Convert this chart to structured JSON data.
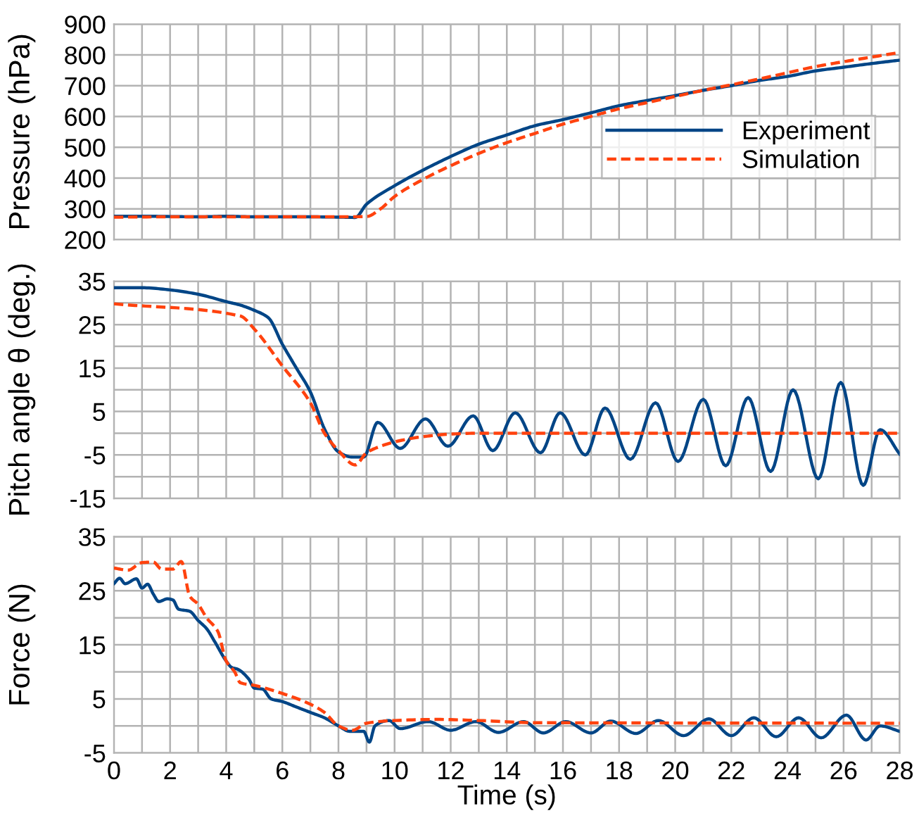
{
  "chart_data": [
    {
      "type": "line",
      "ylabel": "Pressure (hPa)",
      "xlim": [
        0,
        28
      ],
      "xticks": [
        0,
        {
          "value": 1,
          "label": null
        },
        2,
        {
          "value": 3,
          "label": null
        },
        4,
        {
          "value": 5,
          "label": null
        },
        6,
        {
          "value": 7,
          "label": null
        },
        8,
        {
          "value": 9,
          "label": null
        },
        10,
        {
          "value": 11,
          "label": null
        },
        12,
        {
          "value": 13,
          "label": null
        },
        14,
        {
          "value": 15,
          "label": null
        },
        16,
        {
          "value": 17,
          "label": null
        },
        18,
        {
          "value": 19,
          "label": null
        },
        20,
        {
          "value": 21,
          "label": null
        },
        22,
        {
          "value": 23,
          "label": null
        },
        24,
        {
          "value": 25,
          "label": null
        },
        26,
        {
          "value": 27,
          "label": null
        },
        28
      ],
      "ylim": [
        200,
        900
      ],
      "yticks": [
        200,
        300,
        400,
        500,
        600,
        700,
        800,
        900
      ],
      "tick_labels": "y",
      "grid": true,
      "legend": "right",
      "marker": "none",
      "series": [
        {
          "name": "Experiment",
          "color": "#004586",
          "line_style": "solid",
          "x": [
            0,
            1,
            2,
            3,
            4,
            5,
            6,
            7,
            8,
            8.6,
            9,
            10,
            11,
            12,
            13,
            14,
            15,
            16,
            17,
            18,
            19,
            20,
            21,
            22,
            23,
            24,
            25,
            26,
            27,
            28
          ],
          "values": [
            276,
            276,
            275,
            274,
            276,
            274,
            274,
            274,
            273,
            272,
            315,
            375,
            425,
            470,
            510,
            540,
            570,
            590,
            612,
            635,
            652,
            668,
            685,
            700,
            717,
            730,
            748,
            760,
            772,
            783
          ]
        },
        {
          "name": "Simulation",
          "color": "#ff420e",
          "line_style": "dashed",
          "x": [
            0,
            2,
            4,
            6,
            8,
            9,
            9.5,
            10,
            11,
            12,
            13,
            14,
            15,
            16,
            17,
            18,
            19,
            20,
            21,
            22,
            23,
            24,
            25,
            26,
            27,
            28
          ],
          "values": [
            273,
            274,
            274,
            274,
            274,
            275,
            300,
            340,
            395,
            440,
            480,
            515,
            545,
            575,
            600,
            625,
            645,
            665,
            685,
            703,
            722,
            742,
            762,
            778,
            793,
            808
          ]
        }
      ]
    },
    {
      "type": "line",
      "ylabel": "Pitch angle θ (deg.)",
      "xlim": [
        0,
        28
      ],
      "xticks": [
        0,
        {
          "value": 1,
          "label": null
        },
        2,
        {
          "value": 3,
          "label": null
        },
        4,
        {
          "value": 5,
          "label": null
        },
        6,
        {
          "value": 7,
          "label": null
        },
        8,
        {
          "value": 9,
          "label": null
        },
        10,
        {
          "value": 11,
          "label": null
        },
        12,
        {
          "value": 13,
          "label": null
        },
        14,
        {
          "value": 15,
          "label": null
        },
        16,
        {
          "value": 17,
          "label": null
        },
        18,
        {
          "value": 19,
          "label": null
        },
        20,
        {
          "value": 21,
          "label": null
        },
        22,
        {
          "value": 23,
          "label": null
        },
        24,
        {
          "value": 25,
          "label": null
        },
        26,
        {
          "value": 27,
          "label": null
        },
        28
      ],
      "ylim": [
        -15,
        35
      ],
      "yticks": [
        -15,
        {
          "value": -10,
          "label": null
        },
        -5,
        {
          "value": 0,
          "label": null
        },
        5,
        {
          "value": 10,
          "label": null
        },
        15,
        {
          "value": 20,
          "label": null
        },
        25,
        {
          "value": 30,
          "label": null
        },
        35
      ],
      "tick_labels": "y",
      "grid": true,
      "marker": "none",
      "series": [
        {
          "color": "#004586",
          "line_style": "solid",
          "x": [
            0,
            1,
            2,
            3,
            4,
            4.5,
            5,
            5.5,
            6,
            6.5,
            7,
            7.5,
            8,
            8.5,
            8.9,
            9.4,
            10.2,
            11.1,
            11.9,
            12.8,
            13.5,
            14.3,
            15.2,
            15.9,
            16.8,
            17.5,
            18.4,
            19.3,
            20.1,
            21.0,
            21.8,
            22.6,
            23.4,
            24.2,
            25.1,
            25.9,
            26.7,
            27.3,
            28
          ],
          "values": [
            33.5,
            33.5,
            33,
            32,
            30.3,
            29.5,
            28.3,
            26.6,
            20.5,
            15,
            9.5,
            1,
            -4.3,
            -5.5,
            -5.5,
            2.5,
            -3.5,
            3.3,
            -3,
            4,
            -4,
            4.7,
            -4.5,
            4.7,
            -5,
            5.8,
            -6,
            7,
            -6.5,
            7.8,
            -7.5,
            8.2,
            -8.8,
            10,
            -10.5,
            11.7,
            -12,
            0.8,
            -4.8
          ]
        },
        {
          "color": "#ff420e",
          "line_style": "dashed",
          "x": [
            0,
            4.5,
            5,
            6,
            7,
            7.5,
            8,
            8.6,
            9,
            9.5,
            10,
            11,
            12,
            13,
            28
          ],
          "values": [
            29.8,
            27,
            24,
            15.5,
            7,
            0,
            -4,
            -7.3,
            -4.5,
            -3,
            -2,
            -0.8,
            -0.2,
            0,
            0
          ]
        }
      ]
    },
    {
      "type": "line",
      "xlabel": "Time (s)",
      "ylabel": "Force (N)",
      "xlim": [
        0,
        28
      ],
      "xticks": [
        0,
        {
          "value": 1,
          "label": null
        },
        2,
        {
          "value": 3,
          "label": null
        },
        4,
        {
          "value": 5,
          "label": null
        },
        6,
        {
          "value": 7,
          "label": null
        },
        8,
        {
          "value": 9,
          "label": null
        },
        10,
        {
          "value": 11,
          "label": null
        },
        12,
        {
          "value": 13,
          "label": null
        },
        14,
        {
          "value": 15,
          "label": null
        },
        16,
        {
          "value": 17,
          "label": null
        },
        18,
        {
          "value": 19,
          "label": null
        },
        20,
        {
          "value": 21,
          "label": null
        },
        22,
        {
          "value": 23,
          "label": null
        },
        24,
        {
          "value": 25,
          "label": null
        },
        26,
        {
          "value": 27,
          "label": null
        },
        28
      ],
      "ylim": [
        -5,
        35
      ],
      "yticks": [
        -5,
        {
          "value": 0,
          "label": null
        },
        5,
        {
          "value": 10,
          "label": null
        },
        15,
        {
          "value": 20,
          "label": null
        },
        25,
        {
          "value": 30,
          "label": null
        },
        35
      ],
      "grid": true,
      "marker": "none",
      "series": [
        {
          "color": "#004586",
          "line_style": "solid",
          "x": [
            0,
            0.2,
            0.4,
            0.8,
            1,
            1.2,
            1.4,
            1.6,
            1.9,
            2.1,
            2.3,
            2.7,
            3,
            3.3,
            3.6,
            4,
            4.2,
            4.4,
            4.8,
            5,
            5.3,
            5.6,
            6,
            6.5,
            7,
            7.5,
            8,
            8.4,
            8.9,
            9.1,
            9.3,
            9.8,
            10.2,
            11.2,
            12.0,
            12.9,
            13.7,
            14.6,
            15.3,
            16.1,
            17.0,
            17.7,
            18.6,
            19.4,
            20.3,
            21.2,
            22.0,
            22.8,
            23.6,
            24.4,
            25.2,
            26.1,
            26.8,
            27.3,
            28
          ],
          "values": [
            26.3,
            27.3,
            26.3,
            27.2,
            25.5,
            26.2,
            24.4,
            23,
            23.5,
            23.3,
            21.6,
            21.2,
            19.5,
            18,
            15.5,
            12,
            10.8,
            10.5,
            8.7,
            7,
            6.8,
            5,
            4.5,
            3.5,
            2.5,
            1.5,
            0,
            -1,
            -1,
            -3,
            0,
            1,
            -0.5,
            0.8,
            -0.8,
            0.8,
            -1.2,
            0.8,
            -1.3,
            0.8,
            -1.3,
            0.9,
            -1.4,
            1,
            -1.8,
            1.3,
            -1.8,
            1.5,
            -2,
            1.5,
            -2.2,
            2,
            -2.6,
            0,
            -1
          ]
        },
        {
          "color": "#ff420e",
          "line_style": "dashed",
          "x": [
            0,
            0.5,
            1,
            1.4,
            1.7,
            2.1,
            2.4,
            2.7,
            3,
            3.3,
            3.7,
            4,
            4.3,
            4.5,
            5,
            6,
            7,
            7.5,
            8,
            8.5,
            9,
            10,
            11.5,
            13,
            15,
            28
          ],
          "values": [
            29.2,
            28.8,
            30.2,
            30.3,
            29,
            29,
            30.4,
            24,
            22.5,
            20,
            17.5,
            12,
            10,
            8,
            7.5,
            6,
            4,
            2.5,
            0,
            -0.8,
            0.5,
            1,
            1.2,
            1,
            0.6,
            0.5
          ]
        }
      ]
    }
  ]
}
